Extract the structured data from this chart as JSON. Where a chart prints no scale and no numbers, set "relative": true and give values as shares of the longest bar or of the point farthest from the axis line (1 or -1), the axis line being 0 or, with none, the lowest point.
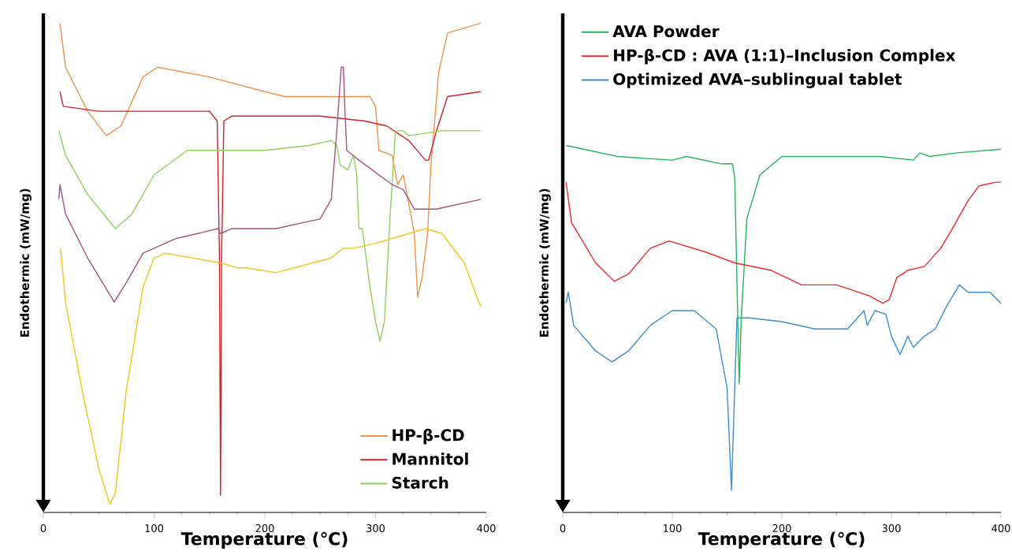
{
  "chart_data": [
    {
      "type": "line",
      "relative": true,
      "xlim": [
        0,
        400
      ],
      "xticks": [
        0,
        100,
        200,
        300,
        400
      ],
      "xlabel": "Temperature (℃)",
      "ylabel": "Endothermic (mW/mg)",
      "legend": "bottom right",
      "series": [
        {
          "name": "HP-β-CD",
          "color": "#f0914e",
          "x": [
            15,
            20,
            40,
            57,
            70,
            90,
            103,
            150,
            200,
            218,
            250,
            295,
            300,
            303,
            315,
            320,
            325,
            330,
            335,
            338,
            342,
            347,
            350,
            357,
            365,
            380,
            395
          ],
          "values": [
            1.0,
            0.91,
            0.82,
            0.77,
            0.79,
            0.89,
            0.91,
            0.89,
            0.86,
            0.85,
            0.85,
            0.85,
            0.83,
            0.74,
            0.73,
            0.67,
            0.69,
            0.63,
            0.57,
            0.44,
            0.48,
            0.57,
            0.71,
            0.9,
            0.98,
            0.99,
            1.0
          ]
        },
        {
          "name": "Mannitol",
          "color": "#cc2229",
          "x": [
            15,
            18,
            50,
            150,
            157,
            159,
            160,
            161,
            163,
            170,
            250,
            290,
            310,
            330,
            345,
            348,
            355,
            365,
            395
          ],
          "values": [
            0.86,
            0.83,
            0.82,
            0.82,
            0.8,
            0.53,
            0.035,
            0.53,
            0.8,
            0.81,
            0.81,
            0.8,
            0.79,
            0.76,
            0.72,
            0.72,
            0.78,
            0.85,
            0.86
          ]
        },
        {
          "name": "Starch",
          "color": "#8ed25b",
          "x": [
            14,
            20,
            40,
            65,
            80,
            100,
            130,
            200,
            240,
            260,
            265,
            268,
            275,
            280,
            283,
            285,
            288,
            295,
            300,
            304,
            308,
            313,
            318,
            325,
            330,
            360,
            375,
            395
          ],
          "values": [
            0.78,
            0.73,
            0.65,
            0.58,
            0.61,
            0.69,
            0.74,
            0.74,
            0.75,
            0.76,
            0.75,
            0.71,
            0.7,
            0.73,
            0.69,
            0.58,
            0.58,
            0.46,
            0.39,
            0.35,
            0.39,
            0.6,
            0.78,
            0.78,
            0.77,
            0.78,
            0.78,
            0.78
          ]
        },
        {
          "color": "#a8527f",
          "x": [
            14,
            15,
            20,
            40,
            64,
            75,
            90,
            120,
            158,
            160,
            170,
            210,
            250,
            260,
            265,
            269,
            271,
            272,
            274,
            285,
            315,
            325,
            335,
            355,
            395
          ],
          "values": [
            0.64,
            0.67,
            0.61,
            0.52,
            0.43,
            0.47,
            0.53,
            0.56,
            0.58,
            0.57,
            0.58,
            0.58,
            0.6,
            0.64,
            0.78,
            0.91,
            0.91,
            0.84,
            0.74,
            0.72,
            0.67,
            0.66,
            0.62,
            0.62,
            0.64
          ]
        },
        {
          "color": "#f5c518",
          "x": [
            15,
            16,
            20,
            35,
            50,
            60,
            65,
            75,
            90,
            100,
            110,
            160,
            175,
            183,
            210,
            260,
            265,
            271,
            280,
            300,
            330,
            345,
            360,
            380,
            395
          ],
          "values": [
            0.54,
            0.53,
            0.43,
            0.25,
            0.09,
            0.016,
            0.04,
            0.25,
            0.46,
            0.52,
            0.53,
            0.51,
            0.5,
            0.5,
            0.49,
            0.52,
            0.53,
            0.54,
            0.54,
            0.55,
            0.57,
            0.58,
            0.57,
            0.51,
            0.42
          ]
        }
      ]
    },
    {
      "type": "line",
      "relative": true,
      "xlim": [
        0,
        400
      ],
      "xticks": [
        0,
        100,
        200,
        300,
        400
      ],
      "xlabel": "Temperature (℃)",
      "ylabel": "Endothermic (mW/mg)",
      "legend": "top left",
      "series": [
        {
          "name": "AVA Powder",
          "color": "#27b35c",
          "x": [
            3,
            50,
            100,
            113,
            145,
            155,
            157,
            159,
            161,
            163,
            168,
            180,
            200,
            250,
            290,
            320,
            326,
            335,
            360,
            400
          ],
          "values": [
            1.0,
            0.97,
            0.96,
            0.97,
            0.95,
            0.95,
            0.91,
            0.63,
            0.35,
            0.53,
            0.8,
            0.92,
            0.97,
            0.97,
            0.97,
            0.96,
            0.98,
            0.97,
            0.98,
            0.99
          ]
        },
        {
          "name": "HP-β-CD : AVA (1:1)–Inclusion Complex",
          "color": "#ee2a2a",
          "x": [
            3,
            8,
            30,
            47,
            60,
            80,
            97,
            130,
            157,
            190,
            218,
            250,
            280,
            292,
            298,
            305,
            315,
            330,
            345,
            355,
            370,
            380,
            395,
            400
          ],
          "values": [
            0.9,
            0.79,
            0.68,
            0.63,
            0.65,
            0.72,
            0.74,
            0.71,
            0.68,
            0.66,
            0.62,
            0.62,
            0.59,
            0.57,
            0.58,
            0.64,
            0.66,
            0.67,
            0.72,
            0.77,
            0.85,
            0.89,
            0.9,
            0.9
          ]
        },
        {
          "name": "Optimized AVA–sublingual tablet",
          "color": "#3a8ed1",
          "x": [
            3,
            5,
            10,
            30,
            45,
            60,
            80,
            100,
            120,
            140,
            150,
            154,
            157,
            159,
            170,
            200,
            230,
            260,
            275,
            278,
            285,
            295,
            300,
            308,
            315,
            320,
            330,
            340,
            350,
            362,
            370,
            390,
            400
          ],
          "values": [
            0.57,
            0.6,
            0.51,
            0.44,
            0.41,
            0.44,
            0.51,
            0.55,
            0.55,
            0.5,
            0.34,
            0.06,
            0.34,
            0.53,
            0.53,
            0.52,
            0.5,
            0.5,
            0.55,
            0.51,
            0.55,
            0.54,
            0.48,
            0.43,
            0.48,
            0.45,
            0.48,
            0.5,
            0.56,
            0.62,
            0.6,
            0.6,
            0.57
          ]
        }
      ]
    }
  ]
}
